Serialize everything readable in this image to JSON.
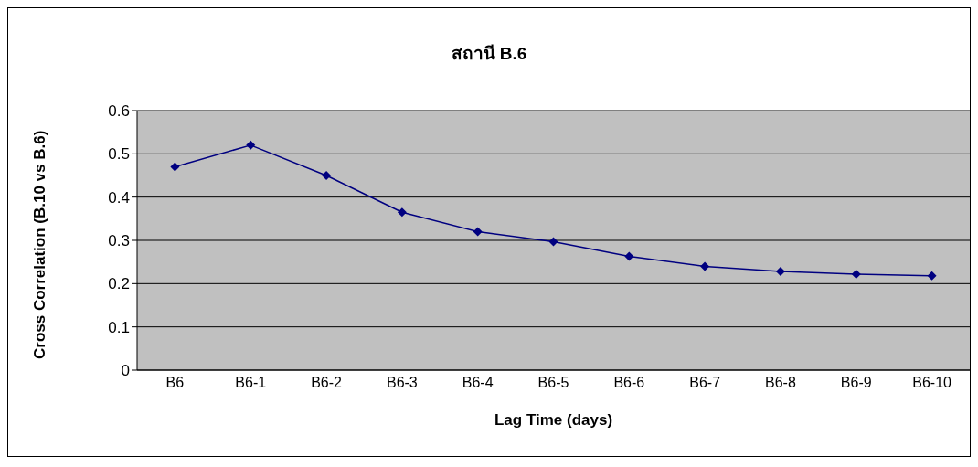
{
  "chart_data": {
    "type": "line",
    "title": "สถานี B.6",
    "xlabel": "Lag Time (days)",
    "ylabel": "Cross Correlation (B.10 vs B.6)",
    "categories": [
      "B6",
      "B6-1",
      "B6-2",
      "B6-3",
      "B6-4",
      "B6-5",
      "B6-6",
      "B6-7",
      "B6-8",
      "B6-9",
      "B6-10"
    ],
    "series": [
      {
        "color": "#000080",
        "values": [
          0.47,
          0.52,
          0.45,
          0.365,
          0.32,
          0.297,
          0.263,
          0.24,
          0.228,
          0.222,
          0.218
        ]
      }
    ],
    "ylim": [
      0,
      0.6
    ],
    "yticks": [
      0,
      0.1,
      0.2,
      0.3,
      0.4,
      0.5,
      0.6
    ],
    "grid": "y",
    "legend": false,
    "marker": "diamond",
    "line_style": "solid"
  }
}
